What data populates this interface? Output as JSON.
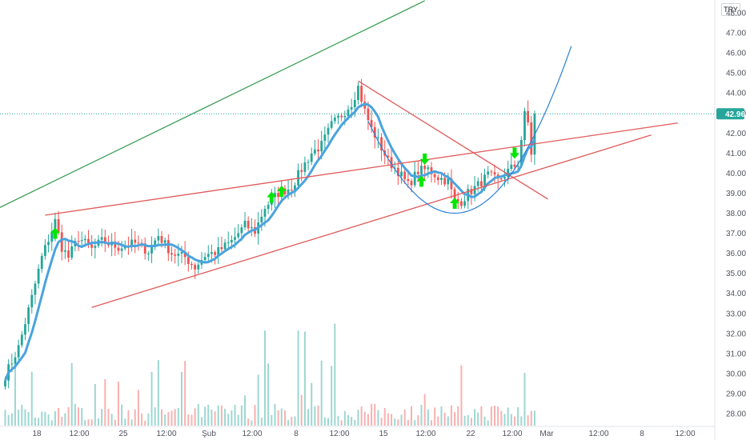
{
  "currency_button": "TRY",
  "colors": {
    "up": "#26a69a",
    "down": "#ef5350",
    "ma": "#4aa3df",
    "green_line": "#3c9e58",
    "red_line": "#e05a5a",
    "arrow": "#00e600",
    "price_label_bg": "#26a69a"
  },
  "chart_data": {
    "type": "candlestick",
    "title": "",
    "xlabel": "",
    "ylabel": "",
    "ylim": [
      27.6,
      48.3
    ],
    "y_ticks": [
      "28.00",
      "29.00",
      "30.00",
      "31.00",
      "32.00",
      "33.00",
      "34.00",
      "35.00",
      "36.00",
      "37.00",
      "38.00",
      "39.00",
      "40.00",
      "41.00",
      "42.00",
      "43.00",
      "44.00",
      "45.00",
      "46.00",
      "47.00",
      "48.00"
    ],
    "x_ticks": [
      "18",
      "12:00",
      "25",
      "12:00",
      "Şub",
      "12:00",
      "8",
      "12:00",
      "15",
      "12:00",
      "22",
      "12:00",
      "Mar",
      "12:00",
      "8",
      "12:00"
    ],
    "last_price_label": "42.96",
    "anchors": [
      [
        0,
        29.9
      ],
      [
        4,
        31.3
      ],
      [
        8,
        33.8
      ],
      [
        11,
        35.8
      ],
      [
        15,
        37.6
      ],
      [
        17,
        36.3
      ],
      [
        19,
        35.8
      ],
      [
        22,
        36.8
      ],
      [
        26,
        36.2
      ],
      [
        29,
        36.6
      ],
      [
        34,
        36.3
      ],
      [
        39,
        36.5
      ],
      [
        43,
        36.1
      ],
      [
        46,
        36.9
      ],
      [
        50,
        36.0
      ],
      [
        54,
        35.8
      ],
      [
        57,
        35.3
      ],
      [
        60,
        35.9
      ],
      [
        64,
        36.1
      ],
      [
        68,
        36.6
      ],
      [
        72,
        37.4
      ],
      [
        75,
        37.1
      ],
      [
        78,
        38.3
      ],
      [
        82,
        39.0
      ],
      [
        86,
        39.3
      ],
      [
        89,
        40.2
      ],
      [
        92,
        41.0
      ],
      [
        95,
        41.4
      ],
      [
        98,
        42.4
      ],
      [
        101,
        42.9
      ],
      [
        104,
        43.5
      ],
      [
        106,
        44.3
      ],
      [
        108,
        43.1
      ],
      [
        110,
        42.2
      ],
      [
        112,
        41.6
      ],
      [
        115,
        40.6
      ],
      [
        118,
        40.1
      ],
      [
        121,
        39.4
      ],
      [
        124,
        40.1
      ],
      [
        127,
        40.2
      ],
      [
        130,
        39.8
      ],
      [
        133,
        39.6
      ],
      [
        135,
        38.6
      ],
      [
        137,
        38.6
      ],
      [
        139,
        39.0
      ],
      [
        142,
        39.4
      ],
      [
        145,
        39.9
      ],
      [
        148,
        39.6
      ],
      [
        151,
        40.1
      ],
      [
        154,
        40.5
      ],
      [
        156,
        42.9
      ],
      [
        157,
        42.5
      ],
      [
        158,
        41.0
      ],
      [
        159,
        42.96
      ]
    ],
    "arrows_up": [
      [
        15,
        37.0
      ],
      [
        80,
        38.8
      ],
      [
        83,
        39.1
      ],
      [
        125,
        39.6
      ],
      [
        135,
        38.5
      ]
    ],
    "arrows_down": [
      [
        126,
        40.7
      ],
      [
        153,
        41.0
      ]
    ],
    "lines": [
      {
        "color": "green",
        "from": [
          -20,
          36.8
        ],
        "to": [
          126,
          48.6
        ]
      },
      {
        "color": "red",
        "from": [
          12,
          37.9
        ],
        "to": [
          202,
          42.5
        ]
      },
      {
        "color": "red",
        "from": [
          26,
          33.3
        ],
        "to": [
          194,
          41.9
        ]
      },
      {
        "color": "red",
        "from": [
          106,
          44.6
        ],
        "to": [
          163,
          38.7
        ]
      }
    ],
    "curve": {
      "center_x": 135,
      "bottom_y": 38.0,
      "a": 0.0068,
      "from_x": 109,
      "to_x": 170
    }
  }
}
